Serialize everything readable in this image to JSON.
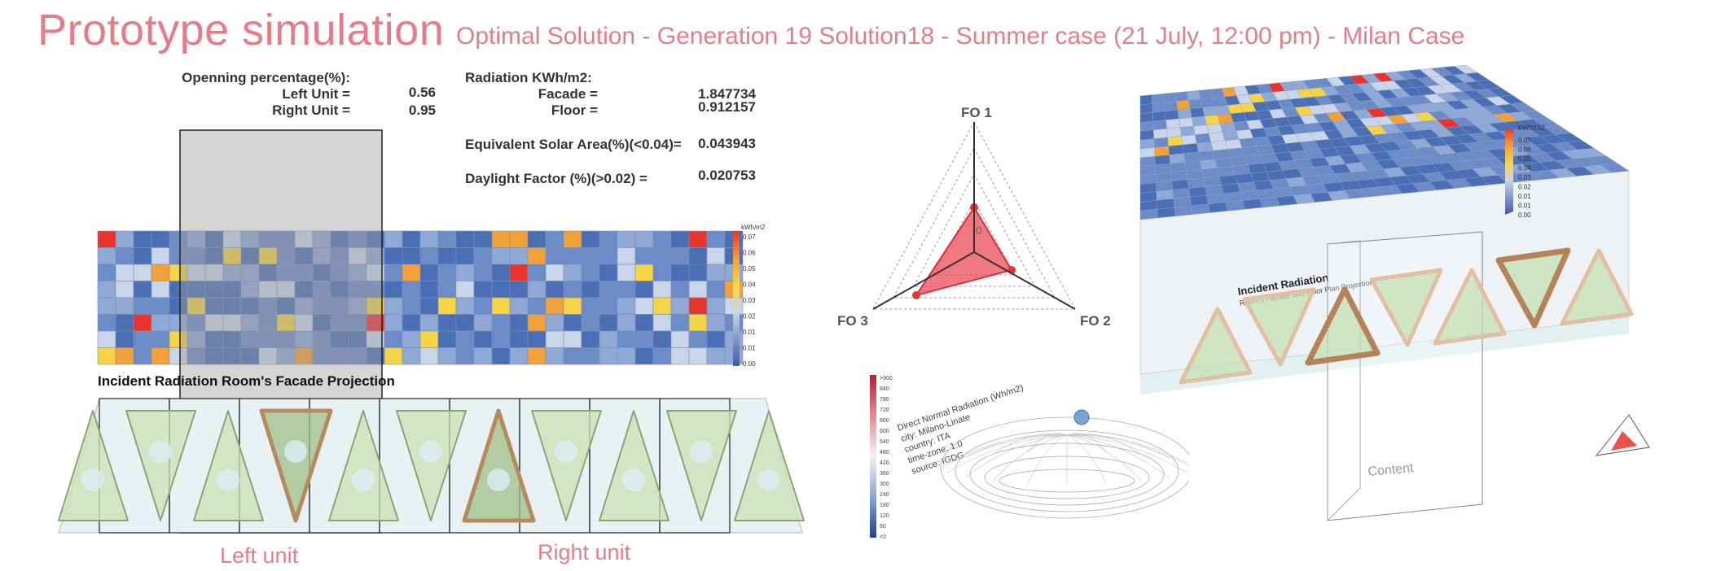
{
  "header": {
    "title": "Prototype  simulation",
    "subtitle": "Optimal Solution - Generation 19 Solution18 - Summer case (21 July, 12:00 pm) - Milan Case"
  },
  "opening": {
    "heading": "Openning percentage(%):",
    "left_label": "Left Unit =",
    "left_value": "0.56",
    "right_label": "Right Unit =",
    "right_value": "0.95"
  },
  "radiation": {
    "heading": "Radiation KWh/m2:",
    "facade_label": "Facade =",
    "facade_value": "1.847734",
    "floor_label": "Floor =",
    "floor_value": "0.912157",
    "esa_label": "Equivalent Solar Area(%)(<0.04)=",
    "esa_value": "0.043943",
    "df_label": "Daylight Factor (%)(>0.02) =",
    "df_value": "0.020753"
  },
  "facade_heatmap": {
    "title": "Incident Radiation Room's Facade Projection",
    "legend_unit": "kWh/m2",
    "legend_ticks": [
      "0.07",
      "0.06",
      "0.05",
      "0.04",
      "0.03",
      "0.02",
      "0.01",
      "0.01",
      "0.00"
    ]
  },
  "unit_labels": {
    "left": "Left unit",
    "right": "Right unit"
  },
  "radar": {
    "axes": [
      "FO 1",
      "FO 2",
      "FO 3"
    ],
    "center_label": "0"
  },
  "sun_path": {
    "legend_ticks": [
      ">900",
      "840",
      "780",
      "720",
      "660",
      "600",
      "540",
      "480",
      "420",
      "360",
      "300",
      "240",
      "180",
      "120",
      "60",
      "<0"
    ],
    "info": [
      "Direct Normal Radiation (Wh/m2)",
      "city: Milano-Linate",
      "country: ITA",
      "time-zone: 1.0",
      "source: IGDG"
    ]
  },
  "iso": {
    "legend_unit": "kWh/m2",
    "legend_ticks": [
      "0.07",
      "0.06",
      "0.05",
      "0.04",
      "0.03",
      "0.02",
      "0.01",
      "0.01",
      "0.00"
    ],
    "caption_title": "Incident Radiation",
    "caption_sub": "Room's Facade and Floor Plan Projection",
    "content_label": "Content"
  },
  "colors": {
    "accent": "#e47d88",
    "heat_low": "#4a6fb5",
    "heat_mid": "#c9d6ea",
    "heat_yellow": "#f5d547",
    "heat_orange": "#f2a13a",
    "heat_red": "#e8342c",
    "radar_fill": "#e94b57"
  }
}
